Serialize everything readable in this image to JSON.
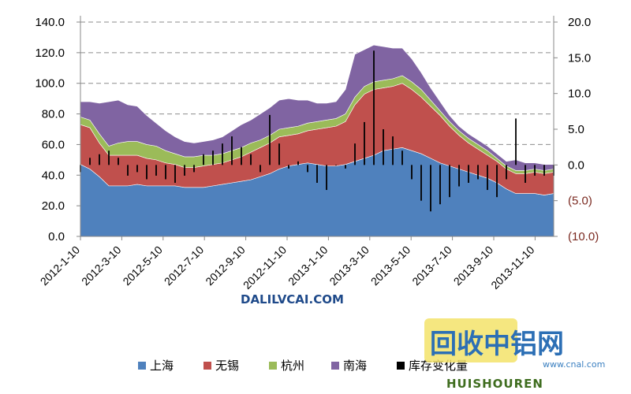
{
  "chart_data": {
    "type": "area",
    "stacked": true,
    "secondary_type": "bar",
    "title": "",
    "xlabel": "",
    "ylabel": "",
    "ylim": [
      0,
      140
    ],
    "y2lim": [
      -10,
      20
    ],
    "yticks": [
      "0.0",
      "20.0",
      "40.0",
      "60.0",
      "80.0",
      "100.0",
      "120.0",
      "140.0"
    ],
    "y2ticks": [
      "(10.0)",
      "(5.0)",
      "0.0",
      "5.0",
      "10.0",
      "15.0",
      "20.0"
    ],
    "grid": true,
    "legend_position": "bottom",
    "x": [
      "2012-1-10",
      "2012-1-24",
      "2012-2-7",
      "2012-2-21",
      "2012-3-6",
      "2012-3-20",
      "2012-4-3",
      "2012-4-17",
      "2012-5-1",
      "2012-5-15",
      "2012-5-29",
      "2012-6-12",
      "2012-6-26",
      "2012-7-10",
      "2012-7-24",
      "2012-8-7",
      "2012-8-21",
      "2012-9-4",
      "2012-9-18",
      "2012-10-2",
      "2012-10-16",
      "2012-10-30",
      "2012-11-13",
      "2012-11-27",
      "2012-12-11",
      "2012-12-25",
      "2013-1-8",
      "2013-1-22",
      "2013-2-5",
      "2013-2-19",
      "2013-3-5",
      "2013-3-19",
      "2013-4-2",
      "2013-4-16",
      "2013-4-30",
      "2013-5-14",
      "2013-5-28",
      "2013-6-11",
      "2013-6-25",
      "2013-7-9",
      "2013-7-23",
      "2013-8-6",
      "2013-8-20",
      "2013-9-3",
      "2013-9-17",
      "2013-10-1",
      "2013-10-15",
      "2013-10-29",
      "2013-11-12",
      "2013-11-26",
      "2013-12-10"
    ],
    "xticks": [
      "2012-1-10",
      "2012-3-10",
      "2012-5-10",
      "2012-7-10",
      "2012-9-10",
      "2012-11-10",
      "2013-1-10",
      "2013-3-10",
      "2013-5-10",
      "2013-7-10",
      "2013-9-10",
      "2013-11-10"
    ],
    "series": [
      {
        "name": "上海",
        "color": "#4f81bd",
        "values": [
          47,
          44,
          39,
          33,
          33,
          33,
          34,
          33,
          33,
          33,
          33,
          32,
          32,
          32,
          33,
          34,
          35,
          36,
          37,
          39,
          41,
          44,
          46,
          47,
          48,
          47,
          46,
          46,
          47,
          49,
          51,
          53,
          56,
          57,
          58,
          56,
          54,
          51,
          48,
          46,
          44,
          42,
          40,
          38,
          35,
          31,
          28,
          28,
          28,
          27,
          28
        ]
      },
      {
        "name": "无锡",
        "color": "#c0504d",
        "values": [
          26,
          27,
          22,
          20,
          20,
          20,
          19,
          18,
          17,
          15,
          14,
          13,
          13,
          14,
          14,
          14,
          15,
          16,
          18,
          19,
          20,
          21,
          20,
          20,
          21,
          23,
          25,
          26,
          28,
          37,
          42,
          43,
          41,
          41,
          42,
          40,
          37,
          34,
          31,
          26,
          22,
          19,
          17,
          15,
          14,
          13,
          13,
          13,
          14,
          14,
          14
        ]
      },
      {
        "name": "杭州",
        "color": "#9bbb59",
        "values": [
          5,
          5,
          6,
          6,
          8,
          9,
          9,
          9,
          9,
          8,
          7,
          7,
          7,
          7,
          6,
          6,
          6,
          6,
          6,
          5,
          5,
          5,
          5,
          5,
          5,
          5,
          5,
          5,
          5,
          5,
          5,
          5,
          5,
          5,
          5,
          5,
          5,
          4,
          3,
          3,
          3,
          3,
          3,
          3,
          2,
          2,
          2,
          2,
          2,
          2,
          2
        ]
      },
      {
        "name": "南海",
        "color": "#8064a2",
        "values": [
          10,
          12,
          20,
          29,
          28,
          24,
          23,
          19,
          15,
          13,
          11,
          10,
          9,
          9,
          10,
          11,
          13,
          15,
          15,
          17,
          18,
          19,
          19,
          17,
          15,
          12,
          11,
          11,
          16,
          28,
          24,
          24,
          22,
          20,
          18,
          15,
          11,
          8,
          6,
          4,
          3,
          3,
          3,
          3,
          3,
          3,
          7,
          5,
          4,
          4,
          3
        ]
      },
      {
        "name": "库存变化量",
        "color": "#000000",
        "axis": "secondary",
        "values": [
          -1,
          1,
          1.5,
          2,
          1,
          -1.5,
          -1,
          -2,
          -1.5,
          -2,
          -2.5,
          -1.5,
          -1,
          1.5,
          2,
          3,
          4,
          2.5,
          1.5,
          -1,
          7,
          3,
          -0.5,
          0.5,
          -1,
          -2.5,
          -3.5,
          0,
          -0.5,
          3,
          6,
          16,
          5,
          4,
          2,
          -2,
          -5,
          -6.5,
          -5.5,
          -4.5,
          -3,
          -2.5,
          -2,
          -3.5,
          -4.5,
          -2,
          6.5,
          -2.5,
          -1.5,
          -1.5,
          -1.5
        ]
      }
    ]
  },
  "legend": [
    {
      "name": "上海",
      "color": "#4f81bd"
    },
    {
      "name": "无锡",
      "color": "#c0504d"
    },
    {
      "name": "杭州",
      "color": "#9bbb59"
    },
    {
      "name": "南海",
      "color": "#8064a2"
    },
    {
      "name": "库存变化量",
      "color": "#000000"
    }
  ],
  "watermarks": {
    "site": "DALILVCAI.COM",
    "cnal_url": "www.cnal.com",
    "cnal_cn": "回收中铝网",
    "huishouren": "HUISHOUREN"
  }
}
